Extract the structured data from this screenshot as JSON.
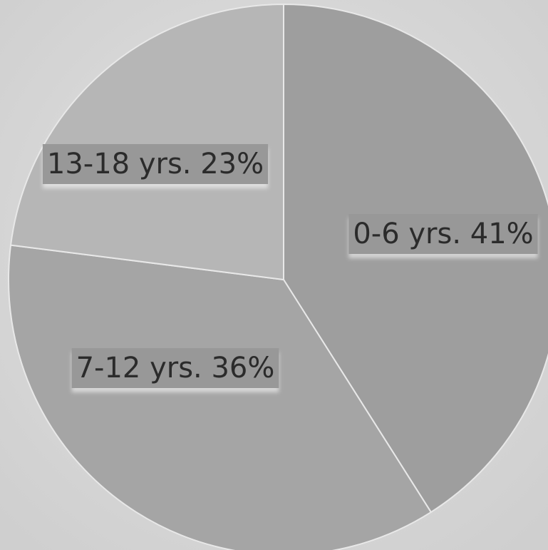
{
  "chart_data": {
    "type": "pie",
    "slices": [
      {
        "label": "0-6 yrs. 41%",
        "value": 41,
        "color": "#9e9e9e"
      },
      {
        "label": "7-12 yrs. 36%",
        "value": 36,
        "color": "#a5a5a5"
      },
      {
        "label": "13-18 yrs. 23%",
        "value": 23,
        "color": "#b6b6b6"
      }
    ],
    "start_angle_deg": 0,
    "direction": "clockwise",
    "label_background": "#989898",
    "edge_color": "#e8e8e8"
  }
}
